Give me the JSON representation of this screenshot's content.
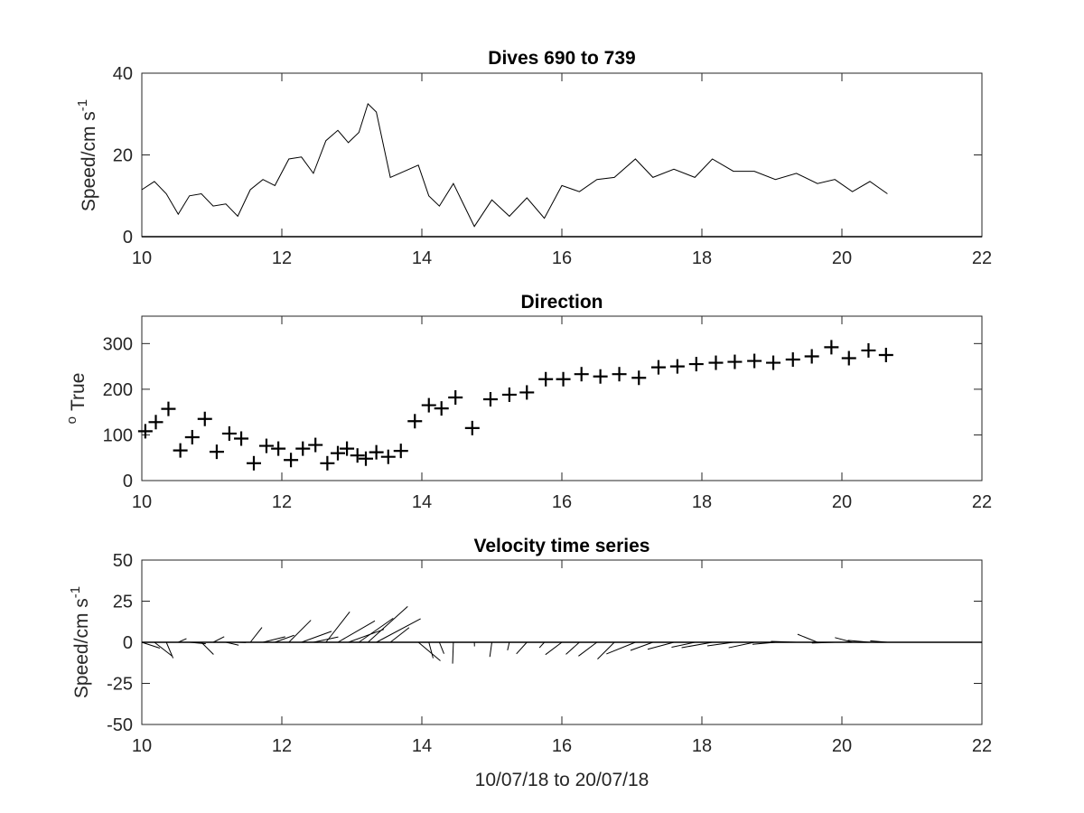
{
  "chart_data": [
    {
      "type": "line",
      "title": "Dives 690 to 739",
      "xlabel": "",
      "ylabel": "Speed/cm s",
      "ylabel_sup": "-1",
      "xlim": [
        10,
        22
      ],
      "ylim": [
        0,
        40
      ],
      "xticks": [
        10,
        12,
        14,
        16,
        18,
        20,
        22
      ],
      "yticks": [
        0,
        20,
        40
      ],
      "zero_line": true,
      "color": "#000000",
      "series": [
        {
          "x": [
            10.0,
            10.18,
            10.35,
            10.52,
            10.68,
            10.85,
            11.02,
            11.2,
            11.37,
            11.55,
            11.73,
            11.9,
            12.1,
            12.28,
            12.45,
            12.63,
            12.8,
            12.95,
            13.1,
            13.23,
            13.35,
            13.55,
            13.95,
            14.1,
            14.25,
            14.45,
            14.75,
            15.0,
            15.25,
            15.5,
            15.75,
            16.0,
            16.25,
            16.5,
            16.75,
            17.05,
            17.3,
            17.6,
            17.9,
            18.15,
            18.45,
            18.75,
            19.05,
            19.35,
            19.65,
            19.9,
            20.15,
            20.4,
            20.65
          ],
          "y": [
            11.5,
            13.5,
            10.5,
            5.5,
            10,
            10.5,
            7.5,
            8,
            5,
            11.5,
            14,
            12.5,
            19,
            19.5,
            15.5,
            23.5,
            26,
            23,
            25.5,
            32.5,
            30.5,
            14.5,
            17.5,
            10,
            7.5,
            13,
            2.5,
            9,
            5,
            9.5,
            4.5,
            12.5,
            11,
            14,
            14.5,
            19,
            14.5,
            16.5,
            14.5,
            19,
            16,
            16,
            14,
            15.5,
            13,
            14,
            11,
            13.5,
            10.5
          ]
        }
      ]
    },
    {
      "type": "scatter",
      "title": "Direction",
      "xlabel": "",
      "ylabel": "True",
      "ylabel_sup": "o",
      "xlim": [
        10,
        22
      ],
      "ylim": [
        0,
        360
      ],
      "xticks": [
        10,
        12,
        14,
        16,
        18,
        20,
        22
      ],
      "yticks": [
        0,
        100,
        200,
        300
      ],
      "marker": "+",
      "color": "#000000",
      "series": [
        {
          "x": [
            10.05,
            10.2,
            10.38,
            10.55,
            10.72,
            10.9,
            11.07,
            11.25,
            11.42,
            11.6,
            11.78,
            11.95,
            12.13,
            12.3,
            12.48,
            12.65,
            12.8,
            12.93,
            13.08,
            13.2,
            13.35,
            13.52,
            13.7,
            13.9,
            14.1,
            14.28,
            14.48,
            14.72,
            14.98,
            15.25,
            15.5,
            15.77,
            16.02,
            16.28,
            16.55,
            16.82,
            17.1,
            17.38,
            17.65,
            17.92,
            18.2,
            18.47,
            18.75,
            19.02,
            19.3,
            19.57,
            19.85,
            20.1,
            20.38,
            20.63
          ],
          "y": [
            108,
            128,
            157,
            66,
            95,
            135,
            63,
            103,
            92,
            38,
            76,
            70,
            45,
            70,
            78,
            38,
            60,
            70,
            55,
            48,
            62,
            52,
            65,
            130,
            165,
            158,
            182,
            115,
            178,
            188,
            193,
            222,
            222,
            233,
            228,
            233,
            225,
            248,
            250,
            255,
            258,
            260,
            262,
            258,
            265,
            272,
            292,
            268,
            285,
            275
          ]
        }
      ]
    },
    {
      "type": "line",
      "title": "Velocity time series",
      "xlabel": "10/07/18 to 20/07/18",
      "ylabel": "Speed/cm s",
      "ylabel_sup": "-1",
      "xlim": [
        10,
        22
      ],
      "ylim": [
        -50,
        50
      ],
      "xticks": [
        10,
        12,
        14,
        16,
        18,
        20,
        22
      ],
      "yticks": [
        -50,
        -25,
        0,
        25,
        50
      ],
      "subtype": "stick plot",
      "zero_line": true,
      "color": "#000000",
      "series": [
        {
          "x": [
            10.0,
            10.18,
            10.35,
            10.52,
            10.68,
            10.85,
            11.02,
            11.2,
            11.37,
            11.55,
            11.73,
            11.9,
            12.1,
            12.28,
            12.45,
            12.63,
            12.8,
            12.95,
            13.1,
            13.23,
            13.35,
            13.55,
            13.95,
            14.1,
            14.25,
            14.45,
            14.75,
            15.0,
            15.25,
            15.5,
            15.75,
            16.0,
            16.25,
            16.5,
            16.75,
            17.05,
            17.3,
            17.6,
            17.9,
            18.15,
            18.45,
            18.75,
            19.05,
            19.35,
            19.65,
            19.9,
            20.15,
            20.4,
            20.65
          ],
          "speed": [
            11.5,
            13.5,
            10.5,
            5.5,
            10,
            10.5,
            7.5,
            8,
            5,
            11.5,
            14,
            12.5,
            19,
            19.5,
            15.5,
            23.5,
            26,
            23,
            25.5,
            32.5,
            30.5,
            14.5,
            17.5,
            10,
            7.5,
            13,
            2.5,
            9,
            5,
            9.5,
            4.5,
            12.5,
            11,
            14,
            14.5,
            19,
            14.5,
            16.5,
            14.5,
            19,
            16,
            16,
            14,
            15.5,
            13,
            14,
            11,
            13.5,
            10.5
          ],
          "direction_deg_true": [
            108,
            128,
            157,
            66,
            95,
            135,
            63,
            103,
            92,
            38,
            76,
            70,
            45,
            70,
            78,
            38,
            60,
            70,
            55,
            48,
            62,
            52,
            130,
            165,
            158,
            182,
            178,
            188,
            193,
            222,
            222,
            233,
            228,
            233,
            225,
            248,
            250,
            255,
            258,
            260,
            262,
            258,
            265,
            272,
            292,
            268,
            285,
            275,
            275
          ]
        }
      ]
    }
  ]
}
